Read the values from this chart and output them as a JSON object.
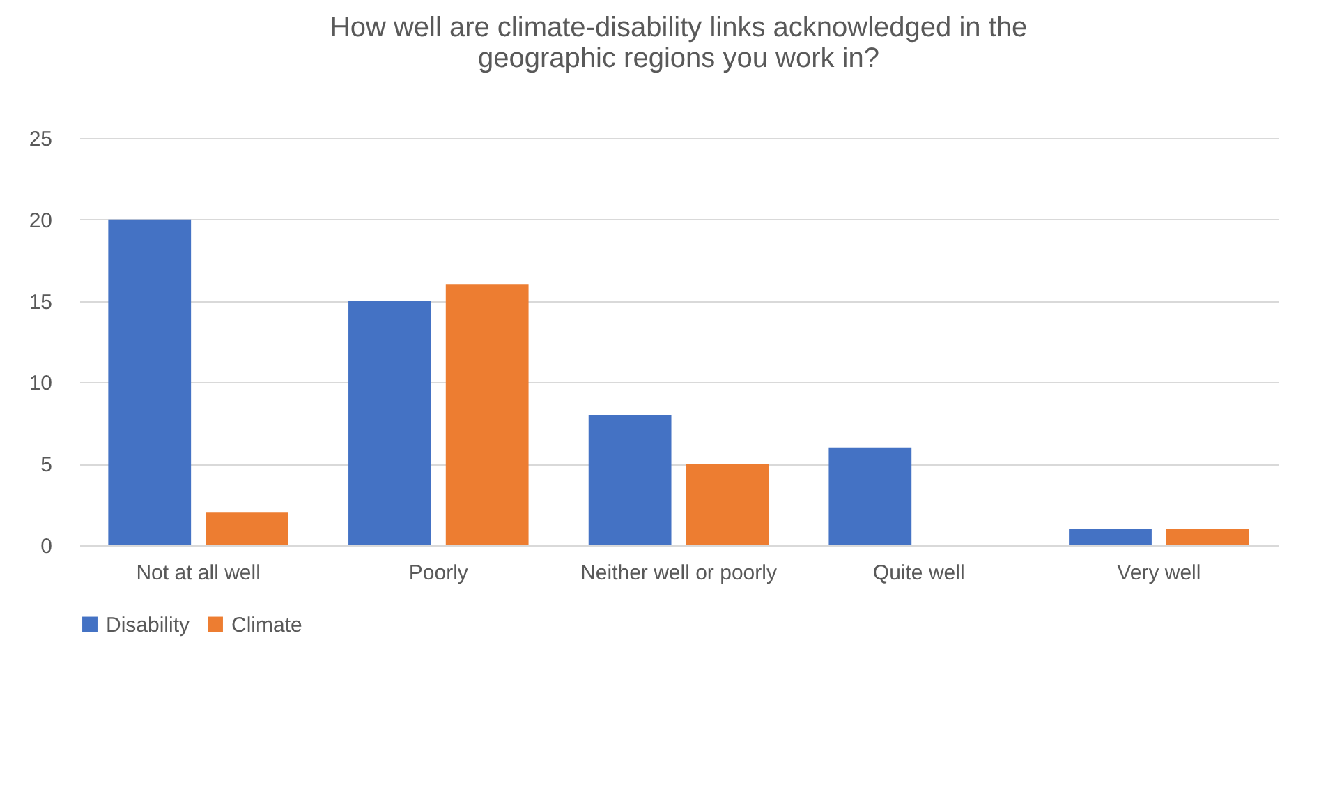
{
  "chart_data": {
    "type": "bar",
    "title": "How well are climate-disability links acknowledged in the geographic regions you work in?",
    "categories": [
      "Not at all well",
      "Poorly",
      "Neither well or poorly",
      "Quite well",
      "Very well"
    ],
    "series": [
      {
        "name": "Disability",
        "color": "#4472c4",
        "values": [
          20,
          15,
          8,
          6,
          1
        ]
      },
      {
        "name": "Climate",
        "color": "#ed7d31",
        "values": [
          2,
          16,
          5,
          0,
          1
        ]
      }
    ],
    "ylim": [
      0,
      25
    ],
    "yticks": [
      0,
      5,
      10,
      15,
      20,
      25
    ],
    "grid": "y",
    "legend": "bottom"
  }
}
